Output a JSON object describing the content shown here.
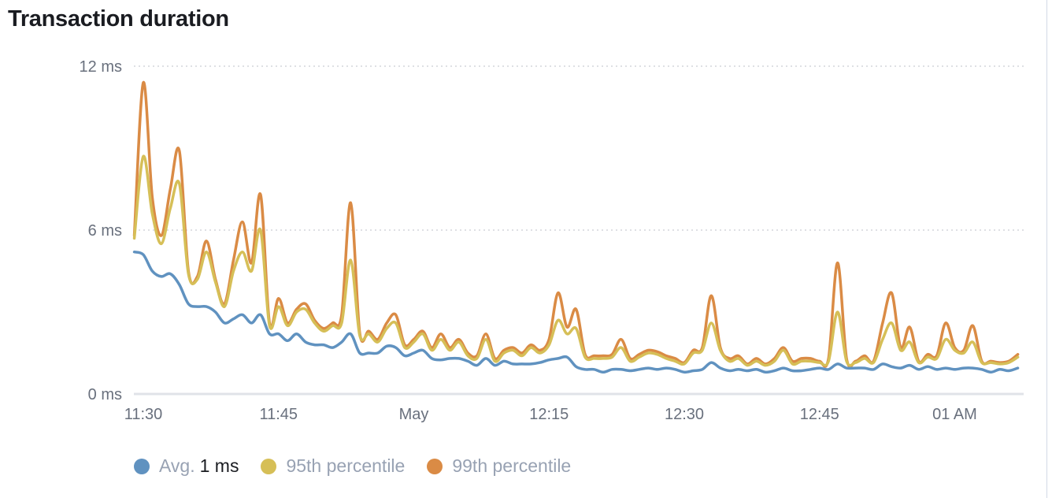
{
  "title": "Transaction duration",
  "chart_data": {
    "type": "line",
    "title": "Transaction duration",
    "x_start": "11:29",
    "x_step_minutes": 1,
    "x_tick_labels": [
      {
        "minute": 0,
        "label": "11:30"
      },
      {
        "minute": 15,
        "label": "11:45"
      },
      {
        "minute": 30,
        "label": "May"
      },
      {
        "minute": 45,
        "label": "12:15"
      },
      {
        "minute": 60,
        "label": "12:30"
      },
      {
        "minute": 75,
        "label": "12:45"
      },
      {
        "minute": 90,
        "label": "01 AM"
      }
    ],
    "y_ticks": [
      {
        "value": 0,
        "label": "0 ms"
      },
      {
        "value": 6,
        "label": "6 ms"
      },
      {
        "value": 12,
        "label": "12 ms"
      }
    ],
    "ylim": [
      0,
      12
    ],
    "yunit": "ms",
    "grid": "horizontal dotted",
    "legend_position": "bottom-left",
    "series": [
      {
        "name": "Avg.",
        "legend_value": "1 ms",
        "color": "#6092c0",
        "values": [
          5.2,
          5.1,
          4.5,
          4.3,
          4.4,
          4.0,
          3.3,
          3.2,
          3.2,
          3.0,
          2.6,
          2.75,
          2.9,
          2.6,
          2.9,
          2.2,
          2.2,
          1.95,
          2.2,
          1.9,
          1.8,
          1.8,
          1.7,
          1.9,
          2.2,
          1.5,
          1.5,
          1.5,
          1.75,
          1.7,
          1.4,
          1.5,
          1.6,
          1.3,
          1.25,
          1.3,
          1.3,
          1.2,
          1.05,
          1.3,
          1.05,
          1.2,
          1.1,
          1.1,
          1.1,
          1.15,
          1.25,
          1.3,
          1.35,
          1.0,
          0.9,
          0.9,
          0.8,
          0.9,
          0.9,
          0.85,
          0.9,
          0.95,
          0.9,
          0.95,
          0.9,
          0.8,
          0.85,
          0.9,
          1.15,
          0.95,
          0.85,
          0.9,
          0.85,
          0.9,
          0.8,
          0.85,
          0.95,
          0.85,
          0.85,
          0.9,
          0.95,
          0.9,
          1.1,
          0.95,
          0.95,
          0.95,
          0.9,
          1.1,
          1.0,
          0.95,
          1.05,
          0.9,
          1.0,
          0.9,
          0.95,
          0.9,
          0.95,
          0.95,
          0.9,
          0.8,
          0.9,
          0.85,
          0.95
        ]
      },
      {
        "name": "95th percentile",
        "color": "#d6bf57",
        "values": [
          5.7,
          8.7,
          6.6,
          5.5,
          6.8,
          7.7,
          4.4,
          4.2,
          5.2,
          4.1,
          3.2,
          4.5,
          5.2,
          4.5,
          6.0,
          2.5,
          3.2,
          2.5,
          3.0,
          3.1,
          2.6,
          2.3,
          2.5,
          2.6,
          4.9,
          2.15,
          2.2,
          1.9,
          2.4,
          2.6,
          1.7,
          1.9,
          2.2,
          1.6,
          2.0,
          1.6,
          1.9,
          1.4,
          1.3,
          2.0,
          1.2,
          1.5,
          1.6,
          1.4,
          1.7,
          1.5,
          1.8,
          2.7,
          2.2,
          2.4,
          1.35,
          1.3,
          1.3,
          1.35,
          1.7,
          1.2,
          1.35,
          1.5,
          1.45,
          1.3,
          1.2,
          1.1,
          1.5,
          1.6,
          2.6,
          1.6,
          1.2,
          1.3,
          1.05,
          1.2,
          1.05,
          1.2,
          1.6,
          1.1,
          1.2,
          1.2,
          1.15,
          1.2,
          3.0,
          1.2,
          1.15,
          1.3,
          1.15,
          2.0,
          2.6,
          1.6,
          1.9,
          1.15,
          1.35,
          1.3,
          2.0,
          1.6,
          1.5,
          1.9,
          1.15,
          1.15,
          1.1,
          1.15,
          1.35
        ]
      },
      {
        "name": "99th percentile",
        "color": "#da8b45",
        "values": [
          5.8,
          11.4,
          7.2,
          5.8,
          7.5,
          8.9,
          4.5,
          4.3,
          5.6,
          4.2,
          3.3,
          4.9,
          6.3,
          4.8,
          7.3,
          2.6,
          3.5,
          2.6,
          3.1,
          3.3,
          2.7,
          2.4,
          2.6,
          2.9,
          7.0,
          2.25,
          2.3,
          2.0,
          2.6,
          2.9,
          1.8,
          2.0,
          2.3,
          1.7,
          2.2,
          1.7,
          2.0,
          1.5,
          1.4,
          2.2,
          1.3,
          1.6,
          1.7,
          1.5,
          1.8,
          1.6,
          2.0,
          3.7,
          2.45,
          3.1,
          1.45,
          1.4,
          1.4,
          1.45,
          2.0,
          1.3,
          1.45,
          1.6,
          1.55,
          1.4,
          1.3,
          1.15,
          1.6,
          1.7,
          3.6,
          1.7,
          1.3,
          1.4,
          1.1,
          1.3,
          1.1,
          1.3,
          1.7,
          1.2,
          1.3,
          1.3,
          1.2,
          1.3,
          4.8,
          1.3,
          1.2,
          1.4,
          1.2,
          2.6,
          3.7,
          1.7,
          2.45,
          1.2,
          1.45,
          1.4,
          2.6,
          1.7,
          1.6,
          2.5,
          1.2,
          1.2,
          1.15,
          1.2,
          1.45
        ]
      }
    ]
  }
}
